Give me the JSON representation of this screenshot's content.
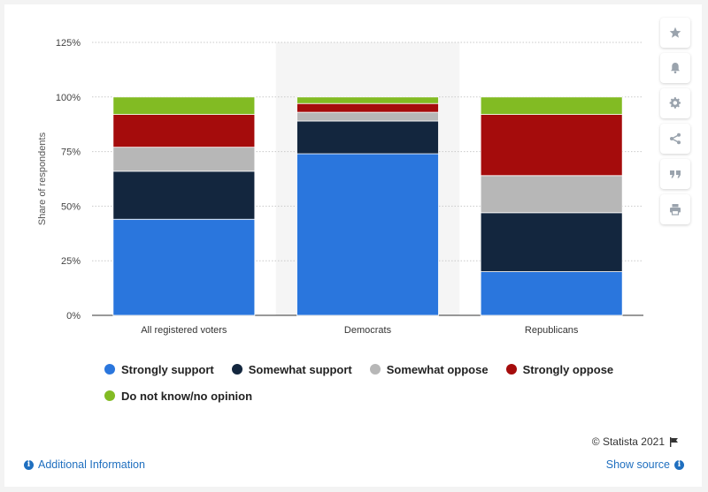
{
  "chart_data": {
    "type": "bar",
    "stacked": true,
    "categories": [
      "All registered voters",
      "Democrats",
      "Republicans"
    ],
    "series": [
      {
        "name": "Strongly support",
        "color": "#2a76dd",
        "values": [
          44,
          74,
          20
        ]
      },
      {
        "name": "Somewhat support",
        "color": "#13263e",
        "values": [
          22,
          15,
          27
        ]
      },
      {
        "name": "Somewhat oppose",
        "color": "#b7b7b7",
        "values": [
          11,
          4,
          17
        ]
      },
      {
        "name": "Strongly oppose",
        "color": "#a50c0c",
        "values": [
          15,
          4,
          28
        ]
      },
      {
        "name": "Do not know/no opinion",
        "color": "#82bb23",
        "values": [
          8,
          3,
          8
        ]
      }
    ],
    "ylabel": "Share of respondents",
    "xlabel": "",
    "ylim": [
      0,
      125
    ],
    "yticks": [
      0,
      25,
      50,
      75,
      100,
      125
    ],
    "ytick_labels": [
      "0%",
      "25%",
      "50%",
      "75%",
      "100%",
      "125%"
    ],
    "highlighted_category": "Democrats",
    "grid": true,
    "legend_position": "bottom"
  },
  "footer": {
    "copyright": "© Statista 2021",
    "additional_info": "Additional Information",
    "show_source": "Show source"
  },
  "toolbar": {
    "icons": [
      "star-icon",
      "bell-icon",
      "gear-icon",
      "share-icon",
      "quote-icon",
      "print-icon"
    ]
  }
}
